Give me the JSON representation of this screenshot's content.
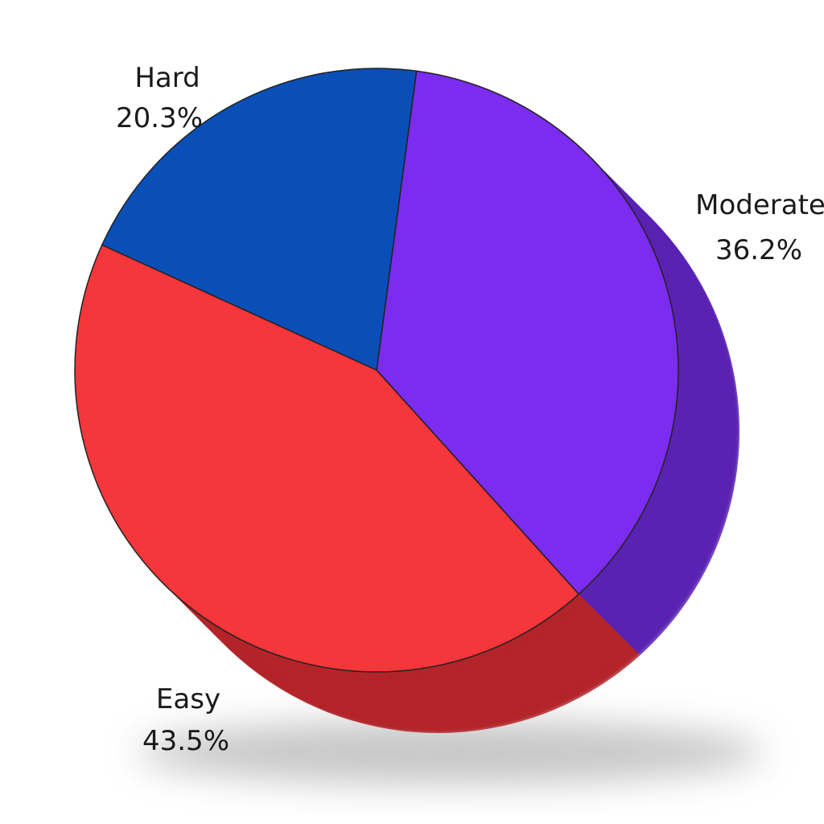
{
  "chart_data": {
    "type": "pie",
    "style": "3d",
    "start_direction": "top, clockwise",
    "slices": [
      {
        "label": "Moderate",
        "value": 36.2,
        "value_label": "36.2%",
        "color": "#7b2cee",
        "side_color": "#5a22b2"
      },
      {
        "label": "Easy",
        "value": 43.5,
        "value_label": "43.5%",
        "color": "#f5363a",
        "side_color": "#b3252a"
      },
      {
        "label": "Hard",
        "value": 20.3,
        "value_label": "20.3%",
        "color": "#0a4fb8",
        "side_color": "#083a88"
      }
    ]
  }
}
